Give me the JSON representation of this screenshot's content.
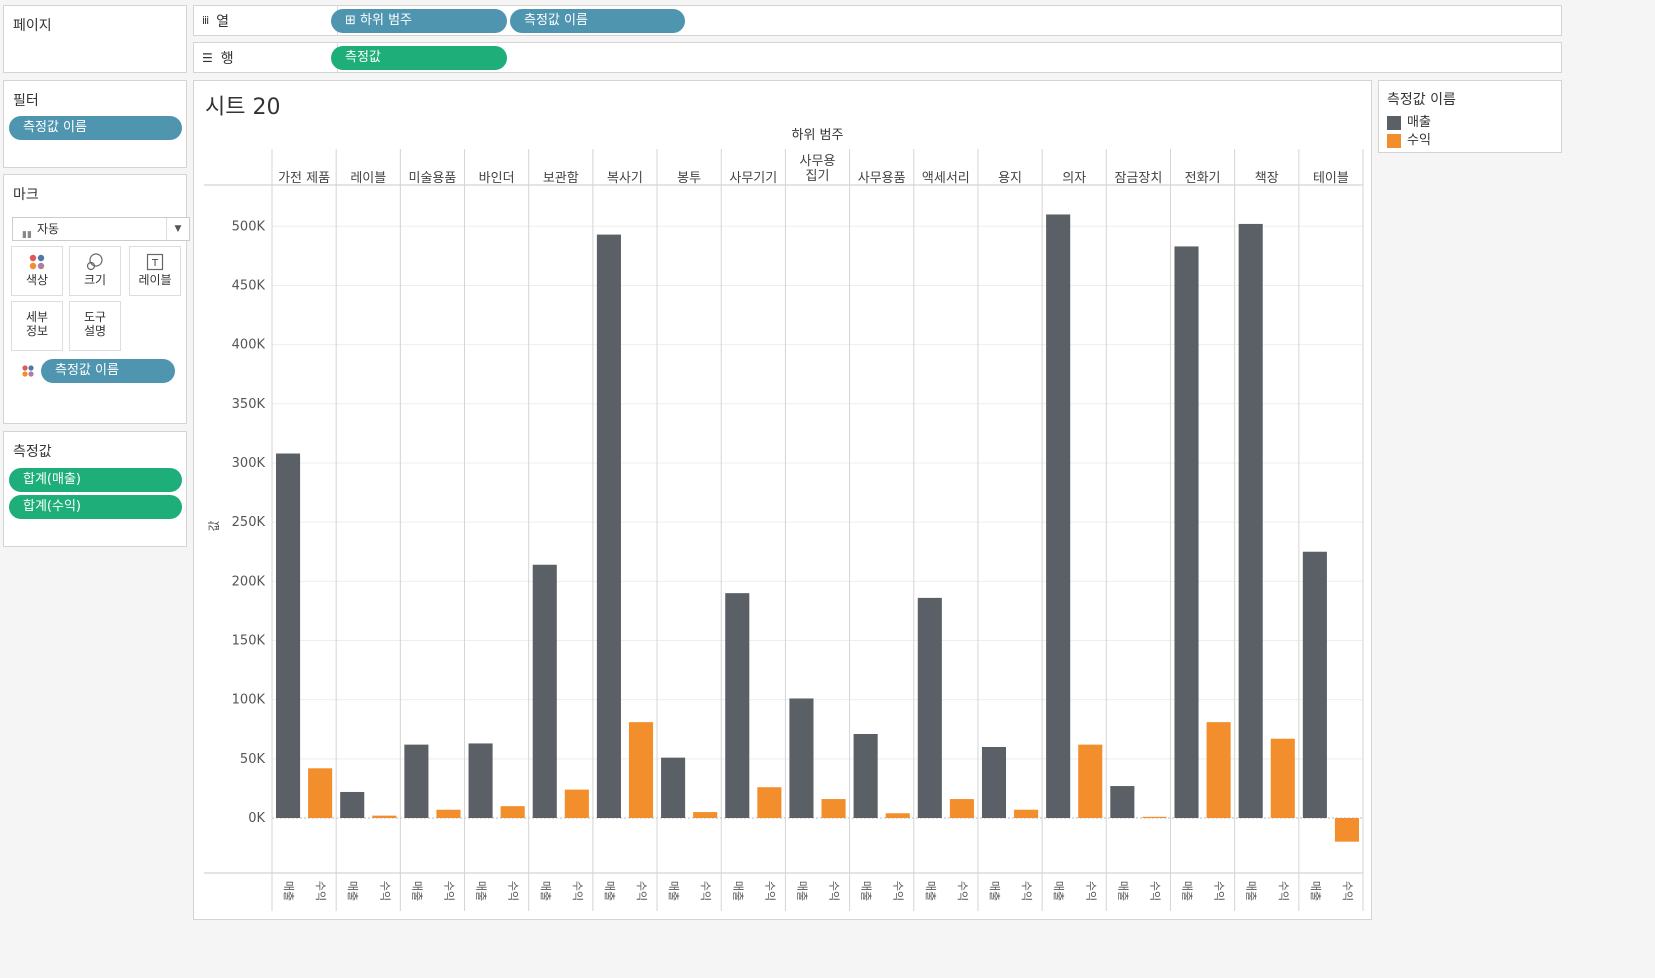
{
  "left": {
    "pages": {
      "title": "페이지"
    },
    "filters": {
      "title": "필터",
      "pill": "측정값 이름"
    },
    "marks": {
      "title": "마크",
      "type": "자동",
      "buttons": [
        {
          "label": "색상",
          "icon": "color-dots-icon"
        },
        {
          "label": "크기",
          "icon": "size-circles-icon"
        },
        {
          "label": "레이블",
          "icon": "text-label-icon"
        },
        {
          "label": "세부\n정보",
          "icon": "detail-icon"
        },
        {
          "label": "도구\n설명",
          "icon": "tooltip-icon"
        }
      ],
      "color_pill": "측정값 이름"
    },
    "measures": {
      "title": "측정값",
      "pills": [
        "합계(매출)",
        "합계(수익)"
      ]
    }
  },
  "shelves": {
    "columns": {
      "label": "열",
      "pills": [
        "⊞ 하위 범주",
        "측정값 이름"
      ]
    },
    "rows": {
      "label": "행",
      "pills": [
        "측정값"
      ]
    }
  },
  "sheet": {
    "title": "시트 20"
  },
  "legend": {
    "title": "측정값 이름",
    "items": [
      {
        "label": "매출",
        "color": "#5b5f66"
      },
      {
        "label": "수익",
        "color": "#f28e2b"
      }
    ]
  },
  "chart_data": {
    "type": "bar",
    "header": "하위 범주",
    "ylabel": "값",
    "ylim": [
      -40000,
      510000
    ],
    "yticks": [
      0,
      50000,
      100000,
      150000,
      200000,
      250000,
      300000,
      350000,
      400000,
      450000,
      500000
    ],
    "ytick_labels": [
      "0K",
      "50K",
      "100K",
      "150K",
      "200K",
      "250K",
      "300K",
      "350K",
      "400K",
      "450K",
      "500K"
    ],
    "categories": [
      "가전 제품",
      "레이블",
      "미술용품",
      "바인더",
      "보관함",
      "복사기",
      "봉투",
      "사무기기",
      "사무용\n집기",
      "사무용품",
      "액세서리",
      "용지",
      "의자",
      "잠금장치",
      "전화기",
      "책장",
      "테이블"
    ],
    "sub_labels": [
      "매출",
      "수익"
    ],
    "series": [
      {
        "name": "매출",
        "color": "#5b5f66",
        "values": [
          308000,
          22000,
          62000,
          63000,
          214000,
          493000,
          51000,
          190000,
          101000,
          71000,
          186000,
          60000,
          510000,
          27000,
          483000,
          502000,
          225000
        ]
      },
      {
        "name": "수익",
        "color": "#f28e2b",
        "values": [
          42000,
          2000,
          7000,
          10000,
          24000,
          81000,
          5000,
          26000,
          16000,
          4000,
          16000,
          7000,
          62000,
          1000,
          81000,
          67000,
          -20000
        ]
      }
    ]
  }
}
